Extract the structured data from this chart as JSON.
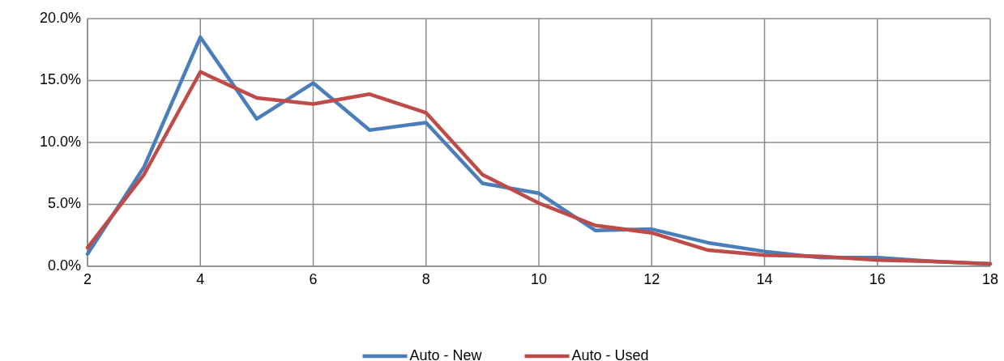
{
  "chart_data": {
    "type": "line",
    "x": [
      2,
      3,
      4,
      5,
      6,
      7,
      8,
      9,
      10,
      11,
      12,
      13,
      14,
      15,
      16,
      17,
      18
    ],
    "series": [
      {
        "name": "Auto - New",
        "color": "#4a7ebb",
        "values": [
          1.0,
          8.0,
          18.5,
          11.9,
          14.8,
          11.0,
          11.6,
          6.7,
          5.9,
          2.9,
          3.0,
          1.9,
          1.2,
          0.7,
          0.7,
          0.4,
          0.2
        ]
      },
      {
        "name": "Auto - Used",
        "color": "#be4b48",
        "values": [
          1.5,
          7.4,
          15.7,
          13.6,
          13.1,
          13.9,
          12.4,
          7.4,
          5.1,
          3.3,
          2.7,
          1.3,
          0.9,
          0.8,
          0.5,
          0.4,
          0.2
        ]
      }
    ],
    "xlim": [
      2,
      18
    ],
    "xticks": [
      2,
      4,
      6,
      8,
      10,
      12,
      14,
      16,
      18
    ],
    "ylim": [
      0,
      20
    ],
    "yticks": [
      {
        "value": 0,
        "label": "0.0%"
      },
      {
        "value": 5,
        "label": "5.0%"
      },
      {
        "value": 10,
        "label": "10.0%"
      },
      {
        "value": 15,
        "label": "15.0%"
      },
      {
        "value": 20,
        "label": "20.0%"
      }
    ],
    "grid": true,
    "legend": "bottom",
    "marker": "none",
    "line_style": "solid"
  }
}
